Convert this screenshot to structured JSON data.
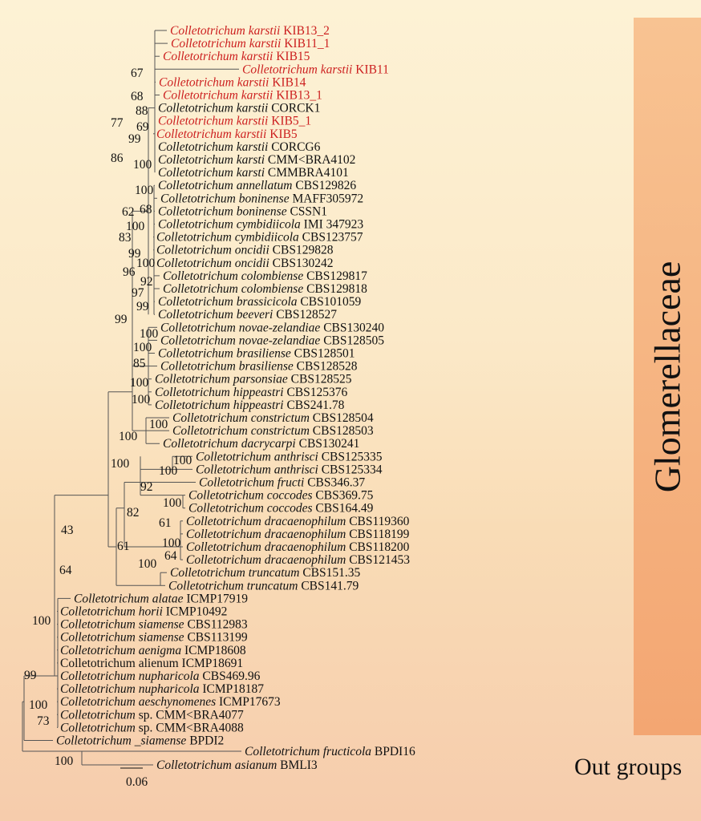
{
  "clades": {
    "glomerellaceae_label": "Glomerellaceae",
    "outgroups_label": "Out groups",
    "glomerellaceae_color": "#f3a672"
  },
  "colors": {
    "highlight": "#cc1f1f",
    "normal": "#111111",
    "branch": "#555555"
  },
  "scale_bar": {
    "value": "0.06"
  },
  "taxa": [
    {
      "genus": "Colletotrichum",
      "species": "karstii",
      "strain": "KIB13_2",
      "highlight": true
    },
    {
      "genus": "Colletotrichum",
      "species": "karstii",
      "strain": "KIB11_1",
      "highlight": true
    },
    {
      "genus": "Colletotrichum",
      "species": "karstii",
      "strain": "KIB15",
      "highlight": true
    },
    {
      "genus": "Colletotrichum",
      "species": "karstii",
      "strain": "KIB11",
      "highlight": true
    },
    {
      "genus": "Colletotrichum",
      "species": "karstii",
      "strain": "KIB14",
      "highlight": true
    },
    {
      "genus": "Colletotrichum",
      "species": "karstii",
      "strain": "KIB13_1",
      "highlight": true
    },
    {
      "genus": "Colletotrichum",
      "species": "karstii",
      "strain": "CORCK1",
      "highlight": false
    },
    {
      "genus": "Colletotrichum",
      "species": "karstii",
      "strain": "KIB5_1",
      "highlight": true
    },
    {
      "genus": "Colletotrichum",
      "species": "karstii",
      "strain": "KIB5",
      "highlight": true
    },
    {
      "genus": "Colletotrichum",
      "species": "karstii",
      "strain": "CORCG6",
      "highlight": false
    },
    {
      "genus": "Colletotrichum",
      "species": "karsti",
      "strain": "CMM<BRA4102",
      "highlight": false
    },
    {
      "genus": "Colletotrichum",
      "species": "karsti",
      "strain": "CMMBRA4101",
      "highlight": false
    },
    {
      "genus": "Colletotrichum",
      "species": "annellatum",
      "strain": "CBS129826",
      "highlight": false
    },
    {
      "genus": "Colletotrichum",
      "species": "boninense",
      "strain": "MAFF305972",
      "highlight": false
    },
    {
      "genus": "Colletotrichum",
      "species": "boninense",
      "strain": "CSSN1",
      "highlight": false
    },
    {
      "genus": "Colletotrichum",
      "species": "cymbidiicola",
      "strain": "IMI 347923",
      "highlight": false
    },
    {
      "genus": "Colletotrichum",
      "species": "cymbidiicola",
      "strain": "CBS123757",
      "highlight": false
    },
    {
      "genus": "Colletotrichum",
      "species": "oncidii",
      "strain": "CBS129828",
      "highlight": false
    },
    {
      "genus": "Colletotrichum",
      "species": "oncidii",
      "strain": "CBS130242",
      "highlight": false
    },
    {
      "genus": "Colletotrichum",
      "species": "colombiense",
      "strain": "CBS129817",
      "highlight": false
    },
    {
      "genus": "Colletotrichum",
      "species": "colombiense",
      "strain": "CBS129818",
      "highlight": false
    },
    {
      "genus": "Colletotrichum",
      "species": "brassicicola",
      "strain": "CBS101059",
      "highlight": false
    },
    {
      "genus": "Colletotrichum",
      "species": "beeveri",
      "strain": "CBS128527",
      "highlight": false
    },
    {
      "genus": "Colletotrichum",
      "species": "novae-zelandiae",
      "strain": "CBS130240",
      "highlight": false
    },
    {
      "genus": "Colletotrichum",
      "species": "novae-zelandiae",
      "strain": "CBS128505",
      "highlight": false
    },
    {
      "genus": "Colletotrichum",
      "species": "brasiliense",
      "strain": "CBS128501",
      "highlight": false
    },
    {
      "genus": "Colletotrichum",
      "species": "brasiliense",
      "strain": "CBS128528",
      "highlight": false
    },
    {
      "genus": "Colletotrichum",
      "species": "parsonsiae",
      "strain": "CBS128525",
      "highlight": false
    },
    {
      "genus": "Colletotrichum",
      "species": "hippeastri",
      "strain": "CBS125376",
      "highlight": false
    },
    {
      "genus": "Colletotrichum",
      "species": "hippeastri",
      "strain": "CBS241.78",
      "highlight": false
    },
    {
      "genus": "Colletotrichum",
      "species": "constrictum",
      "strain": "CBS128504",
      "highlight": false
    },
    {
      "genus": "Colletotrichum",
      "species": "constrictum",
      "strain": "CBS128503",
      "highlight": false
    },
    {
      "genus": "Colletotrichum",
      "species": "dacrycarpi",
      "strain": "CBS130241",
      "highlight": false
    },
    {
      "genus": "Colletotrichum",
      "species": "anthrisci",
      "strain": "CBS125335",
      "highlight": false
    },
    {
      "genus": "Colletotrichum",
      "species": "anthrisci",
      "strain": "CBS125334",
      "highlight": false
    },
    {
      "genus": "Colletotrichum",
      "species": "fructi",
      "strain": "CBS346.37",
      "highlight": false
    },
    {
      "genus": "Colletotrichum",
      "species": "coccodes",
      "strain": "CBS369.75",
      "highlight": false
    },
    {
      "genus": "Colletotrichum",
      "species": "coccodes",
      "strain": "CBS164.49",
      "highlight": false
    },
    {
      "genus": "Colletotrichum",
      "species": "dracaenophilum",
      "strain": "CBS119360",
      "highlight": false
    },
    {
      "genus": "Colletotrichum",
      "species": "dracaenophilum",
      "strain": "CBS118199",
      "highlight": false
    },
    {
      "genus": "Colletotrichum",
      "species": "dracaenophilum",
      "strain": "CBS118200",
      "highlight": false
    },
    {
      "genus": "Colletotrichum",
      "species": "dracaenophilum",
      "strain": "CBS121453",
      "highlight": false
    },
    {
      "genus": "Colletotrichum",
      "species": "truncatum",
      "strain": "CBS151.35",
      "highlight": false
    },
    {
      "genus": "Colletotrichum",
      "species": "truncatum",
      "strain": "CBS141.79",
      "highlight": false
    },
    {
      "genus": "Colletotrichum",
      "species": "alatae",
      "strain": "ICMP17919",
      "highlight": false
    },
    {
      "genus": "Colletotrichum",
      "species": "horii",
      "strain": "ICMP10492",
      "highlight": false
    },
    {
      "genus": "Colletotrichum",
      "species": "siamense",
      "strain": "CBS112983",
      "highlight": false
    },
    {
      "genus": "Colletotrichum",
      "species": "siamense",
      "strain": "CBS113199",
      "highlight": false
    },
    {
      "genus": "Colletotrichum",
      "species": "aenigma",
      "strain": "ICMP18608",
      "highlight": false
    },
    {
      "genus": "",
      "species": "",
      "strain": "Colletotrichum alienum ICMP18691",
      "highlight": false
    },
    {
      "genus": "Colletotrichum",
      "species": "nupharicola",
      "strain": "CBS469.96",
      "highlight": false
    },
    {
      "genus": "Colletotrichum",
      "species": "nupharicola",
      "strain": "ICMP18187",
      "highlight": false
    },
    {
      "genus": "Colletotrichum",
      "species": "aeschynomenes",
      "strain": "ICMP17673",
      "highlight": false
    },
    {
      "genus": "Colletotrichum",
      "species": "",
      "strain": "sp. CMM<BRA4077",
      "highlight": false
    },
    {
      "genus": "Colletotrichum",
      "species": "",
      "strain": "sp. CMM<BRA4088",
      "highlight": false
    },
    {
      "genus": "Colletotrichum",
      "species": "_siamense",
      "strain": "BPDI2",
      "highlight": false
    },
    {
      "genus": "Colletotrichum",
      "species": "fructicola",
      "strain": "BPDI16",
      "highlight": false
    },
    {
      "genus": "Colletotrichum",
      "species": "asianum",
      "strain": "BMLI3",
      "highlight": false
    }
  ],
  "support_values": [
    "67",
    "68",
    "88",
    "77",
    "69",
    "99",
    "86",
    "100",
    "100",
    "62",
    "68",
    "100",
    "83",
    "99",
    "100",
    "96",
    "92",
    "97",
    "99",
    "99",
    "100",
    "100",
    "85",
    "100",
    "100",
    "100",
    "100",
    "100",
    "100",
    "100",
    "92",
    "82",
    "100",
    "61",
    "100",
    "64",
    "61",
    "100",
    "43",
    "64",
    "100",
    "99",
    "100",
    "73",
    "100"
  ]
}
